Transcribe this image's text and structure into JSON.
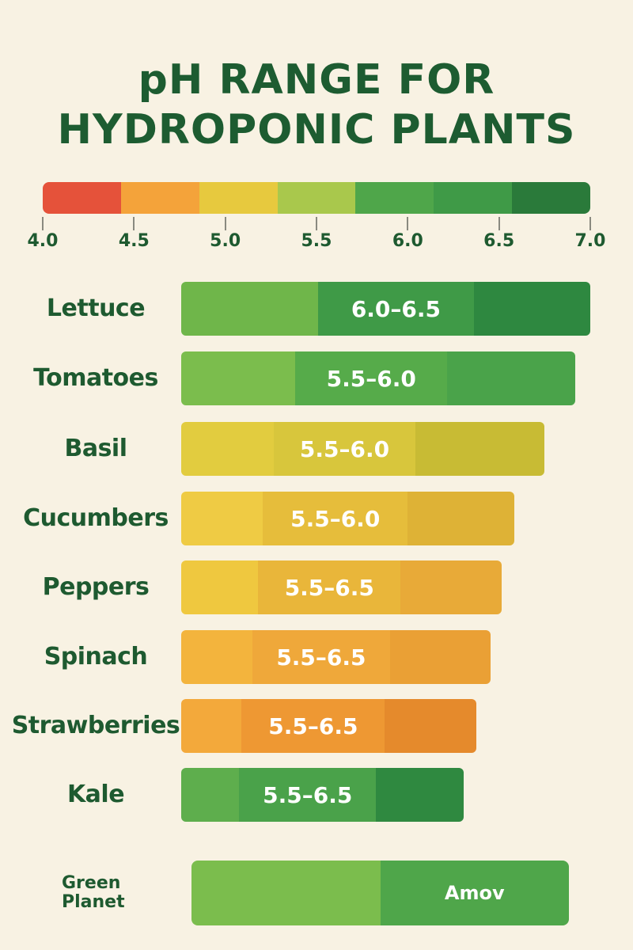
{
  "title_line1": "pH RANGE FOR",
  "title_line2": "HYDROPONIC PLANTS",
  "chart_data": {
    "type": "bar",
    "title": "pH RANGE FOR HYDROPONIC PLANTS",
    "scale": {
      "ticks": [
        "4.0",
        "4.5",
        "5.0",
        "5.5",
        "6.0",
        "6.5",
        "7.0"
      ],
      "colors": [
        "#e5523a",
        "#f4a33a",
        "#e7c93e",
        "#a9c84c",
        "#4fa64a",
        "#3f9a47",
        "#2a7a3a"
      ]
    },
    "categories": [
      "Lettuce",
      "Tomatoes",
      "Basil",
      "Cucumbers",
      "Peppers",
      "Spinach",
      "Strawberries",
      "Kale"
    ],
    "series": [
      {
        "ranges": [
          "6.0–6.5",
          "5.5–6.0",
          "5.5–6.0",
          "5.5–6.0",
          "5.5–6.5",
          "5.5–6.5",
          "5.5–6.5",
          "5.5–6.5"
        ],
        "colors": [
          [
            "#6fb64a",
            "#3f9a47",
            "#2e8840"
          ],
          [
            "#7bbd4d",
            "#56ab4a",
            "#4aa34a"
          ],
          [
            "#e2cc3f",
            "#d8c63c",
            "#c8bb34"
          ],
          [
            "#efcb44",
            "#e6bd3b",
            "#deb236"
          ],
          [
            "#efc83f",
            "#e9b63a",
            "#e8aa38"
          ],
          [
            "#f3b43d",
            "#efa83a",
            "#eaa035"
          ],
          [
            "#f3a93b",
            "#ee9833",
            "#e58a2c"
          ],
          [
            "#5eae4d",
            "#4aa24a",
            "#2f8940"
          ]
        ]
      }
    ]
  },
  "footer": {
    "brand": "Green Planet",
    "bar_text": "Amov",
    "colors": [
      "#7bbd4d",
      "#4fa64a"
    ]
  }
}
